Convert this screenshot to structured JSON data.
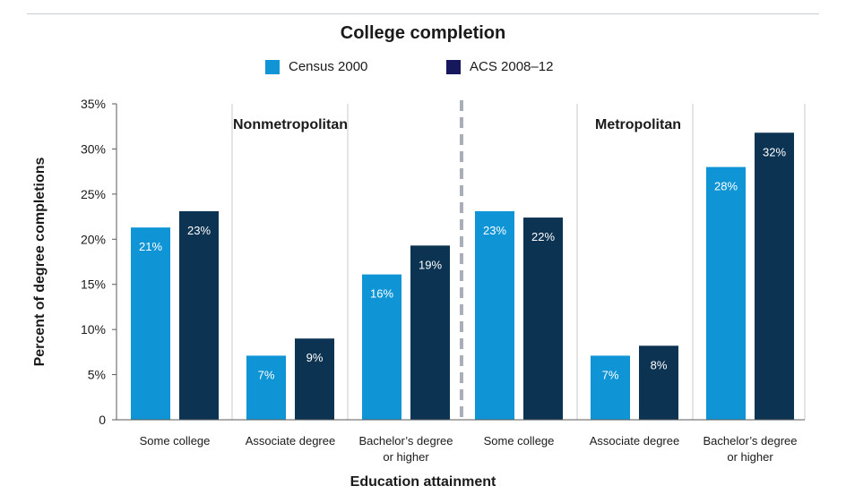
{
  "chart_data": {
    "type": "bar",
    "title": "College completion",
    "xlabel": "Education attainment",
    "ylabel": "Percent of degree completions",
    "ylim": [
      0,
      35
    ],
    "yticks": [
      "0",
      "5%",
      "10%",
      "15%",
      "20%",
      "25%",
      "30%",
      "35%"
    ],
    "ytick_values": [
      0,
      5,
      10,
      15,
      20,
      25,
      30,
      35
    ],
    "legend_position": "top-center",
    "groups": [
      {
        "label": "Nonmetropolitan",
        "categories": [
          "Some college",
          "Associate degree",
          "Bachelor’s degree or higher"
        ],
        "category_lines": [
          [
            "Some college"
          ],
          [
            "Associate degree"
          ],
          [
            "Bachelor’s degree",
            "or higher"
          ]
        ]
      },
      {
        "label": "Metropolitan",
        "categories": [
          "Some college",
          "Associate degree",
          "Bachelor’s degree or higher"
        ],
        "category_lines": [
          [
            "Some college"
          ],
          [
            "Associate degree"
          ],
          [
            "Bachelor’s degree",
            "or higher"
          ]
        ]
      }
    ],
    "series": [
      {
        "name": "Census 2000",
        "color": "#0f95d6",
        "values": [
          21.3,
          7.1,
          16.1,
          23.1,
          7.1,
          28.0
        ],
        "labels": [
          "21%",
          "7%",
          "16%",
          "23%",
          "7%",
          "28%"
        ]
      },
      {
        "name": "ACS 2008–12",
        "color": "#0c3352",
        "values": [
          23.1,
          9.0,
          19.3,
          22.4,
          8.2,
          31.8
        ],
        "labels": [
          "23%",
          "9%",
          "19%",
          "22%",
          "8%",
          "32%"
        ]
      }
    ],
    "legend_colors": [
      "#0f95d6",
      "#17175e"
    ]
  }
}
